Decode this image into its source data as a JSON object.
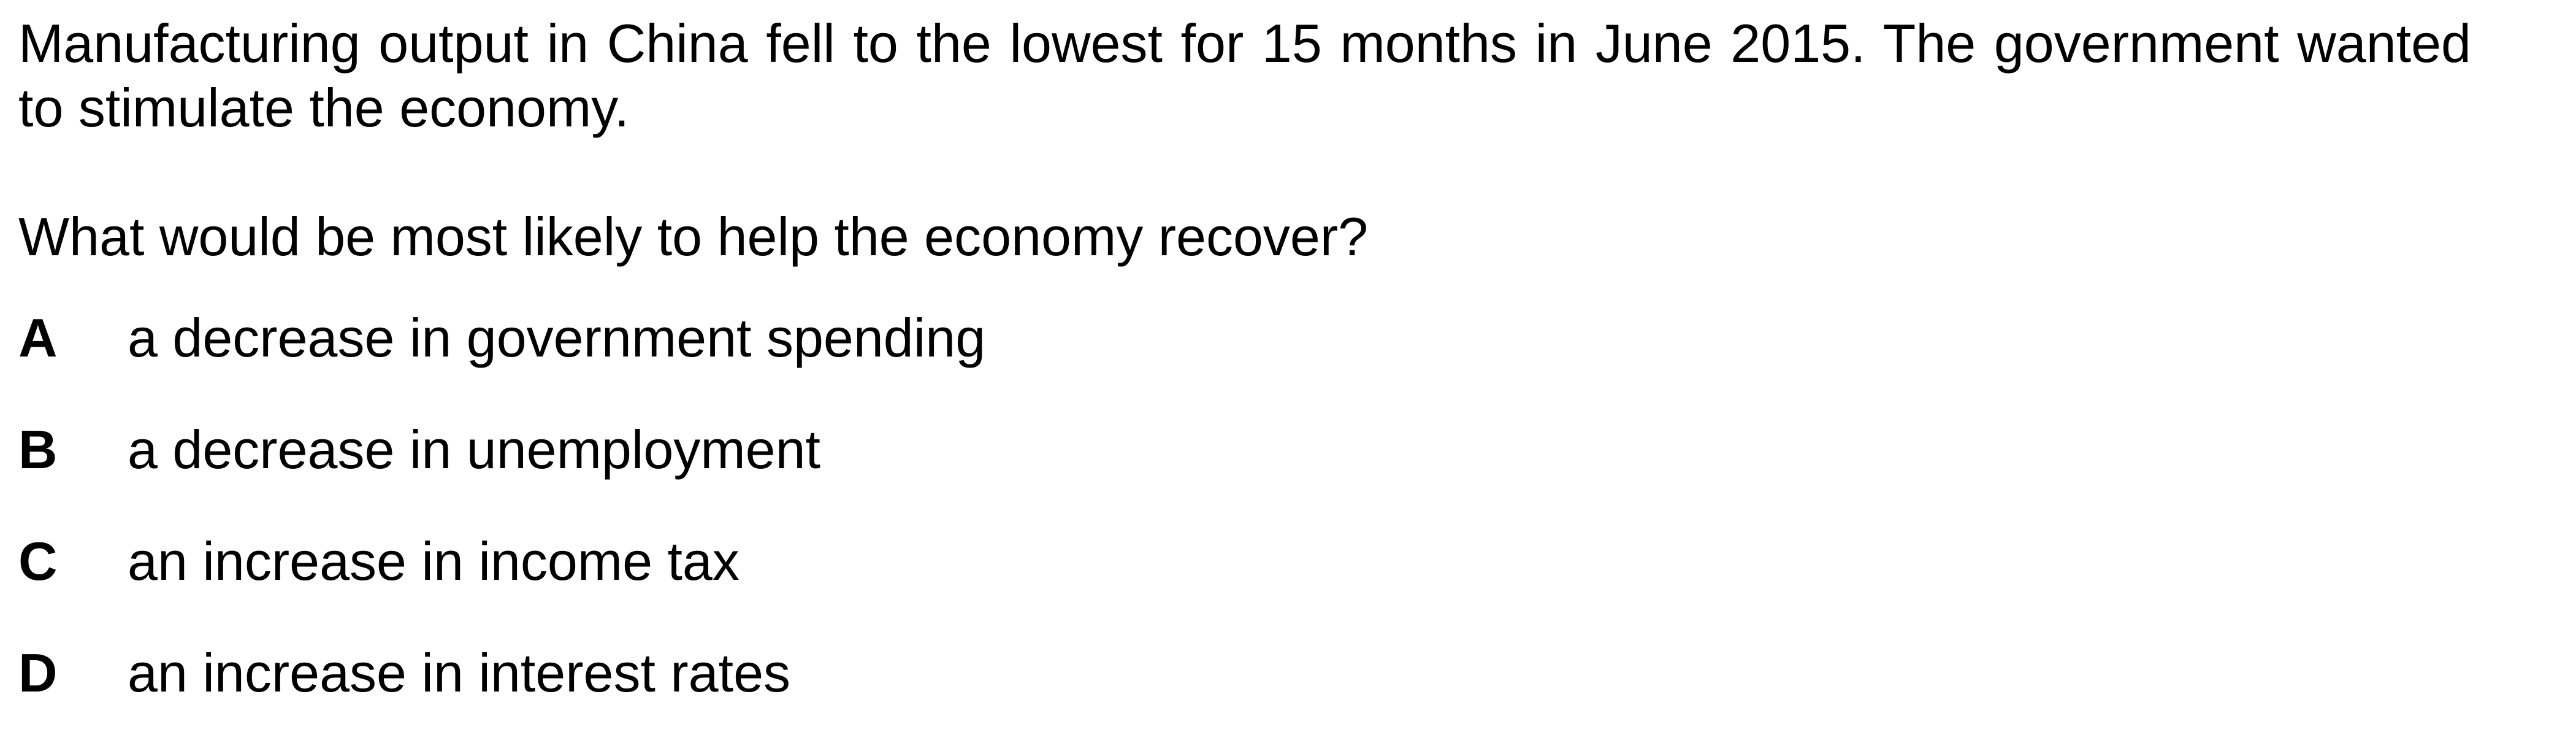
{
  "stem": "Manufacturing output in China fell to the lowest for 15 months in June 2015. The government wanted to stimulate the economy.",
  "question": "What would be most likely to help the economy recover?",
  "options": [
    {
      "letter": "A",
      "text": "a decrease in government spending"
    },
    {
      "letter": "B",
      "text": "a decrease in unemployment"
    },
    {
      "letter": "C",
      "text": "an increase in income tax"
    },
    {
      "letter": "D",
      "text": "an increase in interest rates"
    }
  ]
}
